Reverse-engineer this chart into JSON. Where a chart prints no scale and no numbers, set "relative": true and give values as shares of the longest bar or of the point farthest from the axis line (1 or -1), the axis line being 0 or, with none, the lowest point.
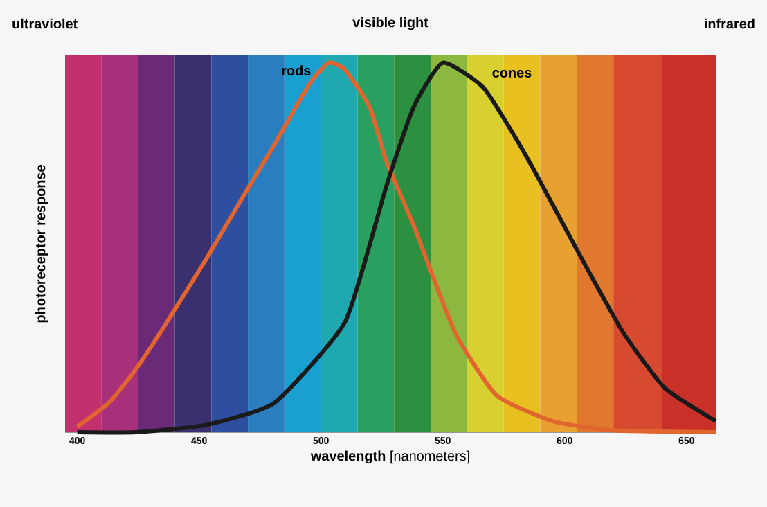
{
  "chart_data": {
    "type": "line",
    "relative": true,
    "xlabel": "**wavelength** [nanometers]",
    "ylabel": "photoreceptor response",
    "annotations": [
      "ultraviolet",
      "visible light",
      "infrared"
    ],
    "xlim": [
      395,
      662
    ],
    "xticks": [
      400,
      450,
      500,
      550,
      600,
      650
    ],
    "series": [
      {
        "name": "rods",
        "color": "#e0652e",
        "x": [
          400,
          413,
          424,
          436,
          453,
          470,
          481,
          495,
          503,
          510,
          520,
          527,
          538,
          555,
          572,
          595,
          620,
          662
        ],
        "values": [
          0.015,
          0.08,
          0.17,
          0.29,
          0.47,
          0.66,
          0.78,
          0.94,
          1.0,
          0.98,
          0.88,
          0.73,
          0.56,
          0.27,
          0.1,
          0.03,
          0.005,
          0
        ]
      },
      {
        "name": "cones",
        "color": "#1a1a1a",
        "x": [
          400,
          424,
          453,
          481,
          510,
          527,
          538,
          550,
          567,
          584,
          607,
          624,
          641,
          662
        ],
        "values": [
          0,
          0,
          0.02,
          0.08,
          0.3,
          0.67,
          0.88,
          1.0,
          0.93,
          0.75,
          0.47,
          0.27,
          0.12,
          0.03
        ]
      }
    ],
    "bands": [
      {
        "axis": "x",
        "from": 395,
        "to": 410,
        "color": "#c2306e"
      },
      {
        "axis": "x",
        "from": 410,
        "to": 425,
        "color": "#a8307a"
      },
      {
        "axis": "x",
        "from": 425,
        "to": 440,
        "color": "#6a2a78"
      },
      {
        "axis": "x",
        "from": 440,
        "to": 455,
        "color": "#3a3070"
      },
      {
        "axis": "x",
        "from": 455,
        "to": 470,
        "color": "#2e4fa0"
      },
      {
        "axis": "x",
        "from": 470,
        "to": 485,
        "color": "#2a7ec0"
      },
      {
        "axis": "x",
        "from": 485,
        "to": 500,
        "color": "#1aa0d0"
      },
      {
        "axis": "x",
        "from": 500,
        "to": 515,
        "color": "#20a8b0"
      },
      {
        "axis": "x",
        "from": 515,
        "to": 530,
        "color": "#2aa060"
      },
      {
        "axis": "x",
        "from": 530,
        "to": 545,
        "color": "#2c9040"
      },
      {
        "axis": "x",
        "from": 545,
        "to": 560,
        "color": "#8cb840"
      },
      {
        "axis": "x",
        "from": 560,
        "to": 575,
        "color": "#d8d030"
      },
      {
        "axis": "x",
        "from": 575,
        "to": 590,
        "color": "#e8c020"
      },
      {
        "axis": "x",
        "from": 590,
        "to": 605,
        "color": "#e8a030"
      },
      {
        "axis": "x",
        "from": 605,
        "to": 620,
        "color": "#e07830"
      },
      {
        "axis": "x",
        "from": 620,
        "to": 640,
        "color": "#d84a30"
      },
      {
        "axis": "x",
        "from": 640,
        "to": 662,
        "color": "#c83028"
      }
    ],
    "grid": false,
    "marker": "none",
    "line_style": "solid"
  }
}
